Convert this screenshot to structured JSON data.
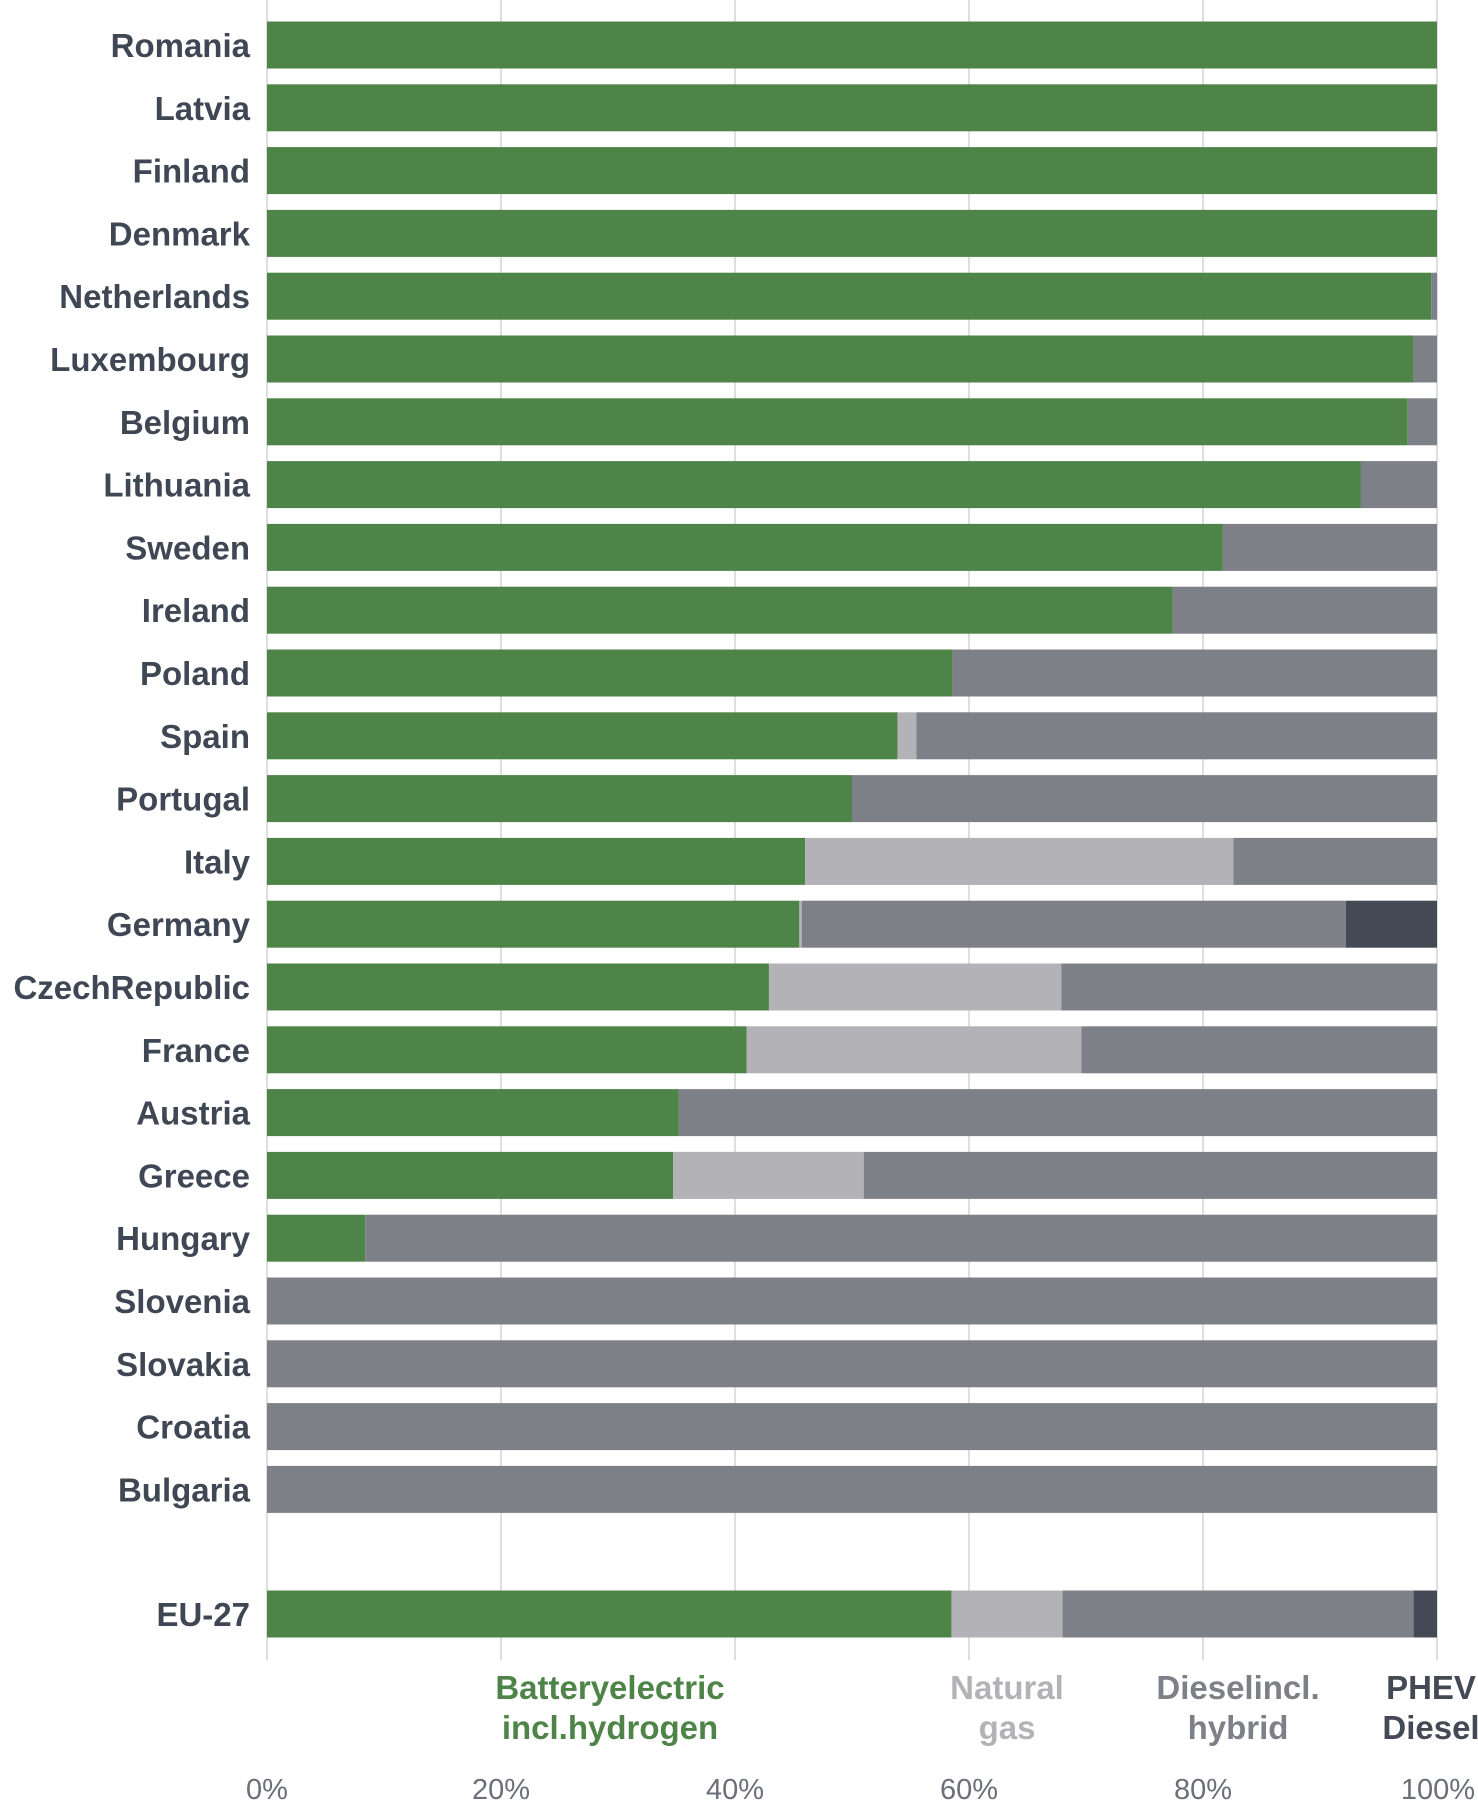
{
  "chart_data": {
    "type": "bar",
    "orientation": "horizontal",
    "stacked": true,
    "categories": [
      "Romania",
      "Latvia",
      "Finland",
      "Denmark",
      "Netherlands",
      "Luxembourg",
      "Belgium",
      "Lithuania",
      "Sweden",
      "Ireland",
      "Poland",
      "Spain",
      "Portugal",
      "Italy",
      "Germany",
      "CzechRepublic",
      "France",
      "Austria",
      "Greece",
      "Hungary",
      "Slovenia",
      "Slovakia",
      "Croatia",
      "Bulgaria",
      "EU-27"
    ],
    "series": [
      {
        "name_lines": [
          "Batteryelectric",
          "incl.hydrogen"
        ],
        "color": "#4e8447",
        "values": [
          100,
          100,
          100,
          100,
          99.5,
          98,
          97.5,
          93.5,
          81.7,
          77.4,
          58.6,
          53.9,
          50,
          46,
          45.5,
          42.9,
          41,
          35.2,
          34.7,
          8.4,
          0,
          0,
          0,
          0,
          58.5
        ]
      },
      {
        "name_lines": [
          "Natural",
          "gas"
        ],
        "color": "#b3b3b7",
        "values": [
          0,
          0,
          0,
          0,
          0,
          0,
          0,
          0,
          0,
          0,
          0,
          1.6,
          0,
          36.6,
          0.2,
          25,
          28.6,
          0,
          16.3,
          0,
          0,
          0,
          0,
          0,
          9.5
        ]
      },
      {
        "name_lines": [
          "Dieselincl.",
          "hybrid"
        ],
        "color": "#7e8087",
        "values": [
          0,
          0,
          0,
          0,
          0.5,
          2,
          2.5,
          6.5,
          18.3,
          22.6,
          41.4,
          44.5,
          50,
          17.4,
          46.5,
          32.1,
          30.4,
          64.8,
          49,
          91.6,
          100,
          100,
          100,
          100,
          30
        ]
      },
      {
        "name_lines": [
          "PHEV",
          "Diesel"
        ],
        "color": "#444a55",
        "values": [
          0,
          0,
          0,
          0,
          0,
          0,
          0,
          0,
          0,
          0,
          0,
          0,
          0,
          0,
          7.8,
          0,
          0,
          0,
          0,
          0,
          0,
          0,
          0,
          0,
          2
        ]
      }
    ],
    "xticks": [
      "0%",
      "20%",
      "40%",
      "60%",
      "80%",
      "100%"
    ],
    "xlim": [
      0,
      100
    ],
    "grid": true,
    "legend": "bottom"
  }
}
